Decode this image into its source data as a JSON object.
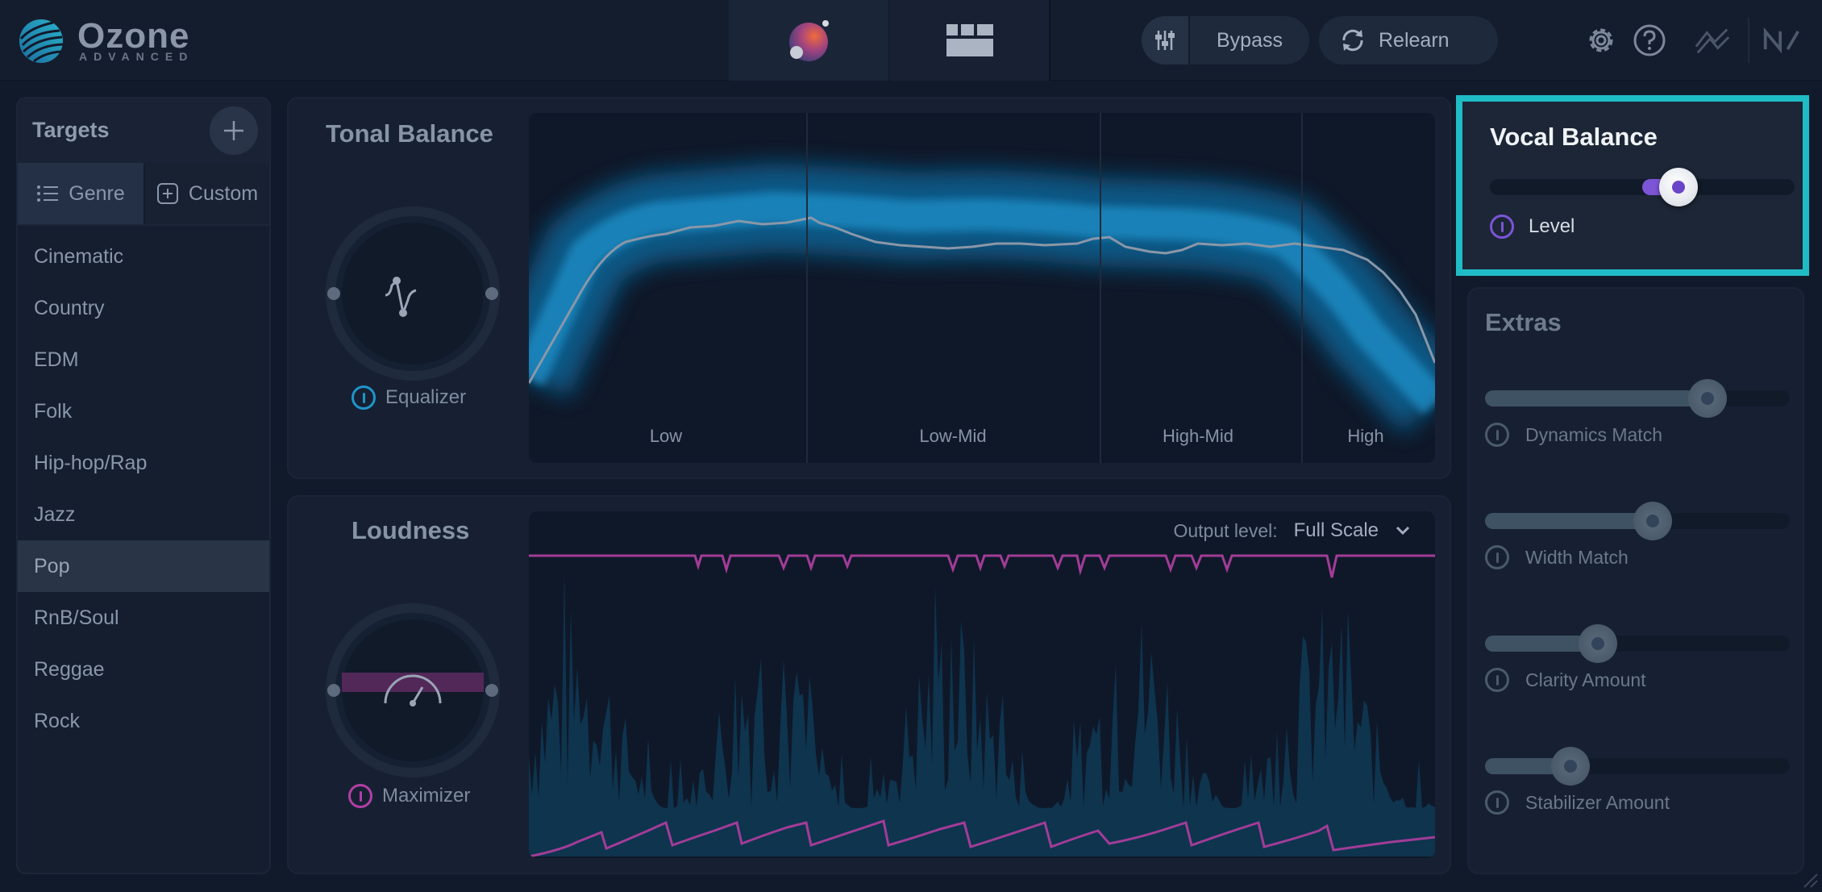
{
  "app": {
    "name": "Ozone",
    "edition": "ADVANCED"
  },
  "header": {
    "bypass_label": "Bypass",
    "relearn_label": "Relearn",
    "icons": [
      "mixer-icon",
      "settings-gear-icon",
      "help-icon",
      "signal-chain-icon",
      "ni-logo-icon"
    ]
  },
  "targets": {
    "title": "Targets",
    "tabs": [
      {
        "label": "Genre",
        "icon": "list-icon",
        "selected": true
      },
      {
        "label": "Custom",
        "icon": "add-square-icon",
        "selected": false
      }
    ],
    "genres": [
      {
        "label": "Cinematic",
        "selected": false
      },
      {
        "label": "Country",
        "selected": false
      },
      {
        "label": "EDM",
        "selected": false
      },
      {
        "label": "Folk",
        "selected": false
      },
      {
        "label": "Hip-hop/Rap",
        "selected": false
      },
      {
        "label": "Jazz",
        "selected": false
      },
      {
        "label": "Pop",
        "selected": true
      },
      {
        "label": "RnB/Soul",
        "selected": false
      },
      {
        "label": "Reggae",
        "selected": false
      },
      {
        "label": "Rock",
        "selected": false
      }
    ]
  },
  "tonal_balance": {
    "title": "Tonal Balance",
    "module_label": "Equalizer",
    "bands": [
      "Low",
      "Low-Mid",
      "High-Mid",
      "High"
    ]
  },
  "loudness": {
    "title": "Loudness",
    "module_label": "Maximizer",
    "output_level_label": "Output level:",
    "output_level_value": "Full Scale"
  },
  "vocal_balance": {
    "title": "Vocal Balance",
    "level_label": "Level",
    "level_value": 0.62
  },
  "extras": {
    "title": "Extras",
    "sliders": [
      {
        "label": "Dynamics Match",
        "value": 0.73
      },
      {
        "label": "Width Match",
        "value": 0.55
      },
      {
        "label": "Clarity Amount",
        "value": 0.37
      },
      {
        "label": "Stabilizer Amount",
        "value": 0.28
      }
    ]
  },
  "colors": {
    "accent_teal": "#1fbcc6",
    "equalizer_blue": "#1f95c9",
    "maximizer_magenta": "#b13fa3",
    "vocal_purple": "#7b55d6"
  }
}
